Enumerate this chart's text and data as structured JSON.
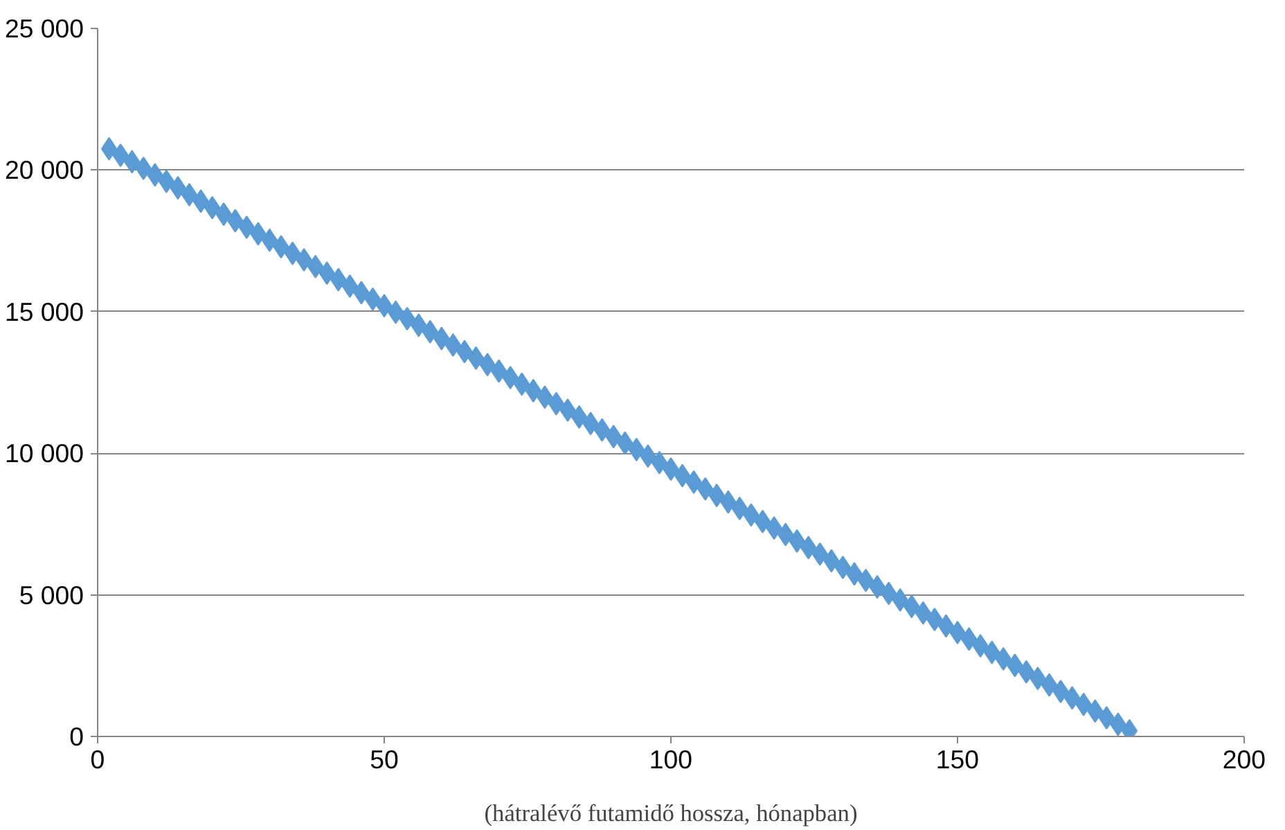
{
  "chart_data": {
    "type": "scatter",
    "xlabel": "(hátralévő futamidő hossza, hónapban)",
    "marker": "diamond",
    "grid": "y",
    "xlim": [
      0,
      200
    ],
    "xticks": [
      0,
      50,
      100,
      150,
      200
    ],
    "ylim": [
      0,
      25000
    ],
    "yticks": [
      0,
      {
        "value": 5000,
        "label": "5 000"
      },
      {
        "value": 10000,
        "label": "10 000"
      },
      {
        "value": 15000,
        "label": "15 000"
      },
      {
        "value": 20000,
        "label": "20 000"
      },
      {
        "value": 25000,
        "label": "25 000"
      }
    ],
    "x": [
      2,
      4,
      6,
      8,
      10,
      12,
      14,
      16,
      18,
      20,
      22,
      24,
      26,
      28,
      30,
      32,
      34,
      36,
      38,
      40,
      42,
      44,
      46,
      48,
      50,
      52,
      54,
      56,
      58,
      60,
      62,
      64,
      66,
      68,
      70,
      72,
      74,
      76,
      78,
      80,
      82,
      84,
      86,
      88,
      90,
      92,
      94,
      96,
      98,
      100,
      102,
      104,
      106,
      108,
      110,
      112,
      114,
      116,
      118,
      120,
      122,
      124,
      126,
      128,
      130,
      132,
      134,
      136,
      138,
      140,
      142,
      144,
      146,
      148,
      150,
      152,
      154,
      156,
      158,
      160,
      162,
      164,
      166,
      168,
      170,
      172,
      174,
      176,
      178,
      180
    ],
    "series": [
      {
        "color": "#5b9bd5",
        "values": [
          20750,
          20520,
          20290,
          20060,
          19830,
          19600,
          19370,
          19130,
          18900,
          18670,
          18440,
          18210,
          17980,
          17750,
          17520,
          17290,
          17060,
          16830,
          16590,
          16360,
          16130,
          15900,
          15670,
          15440,
          15210,
          14980,
          14750,
          14520,
          14290,
          14050,
          13820,
          13590,
          13360,
          13130,
          12900,
          12670,
          12440,
          12210,
          11980,
          11750,
          11520,
          11280,
          11050,
          10820,
          10590,
          10360,
          10130,
          9900,
          9670,
          9440,
          9210,
          8980,
          8740,
          8510,
          8280,
          8050,
          7820,
          7590,
          7360,
          7130,
          6900,
          6670,
          6440,
          6200,
          5970,
          5740,
          5510,
          5280,
          5050,
          4820,
          4590,
          4360,
          4130,
          3900,
          3670,
          3440,
          3200,
          2970,
          2740,
          2510,
          2280,
          2050,
          1820,
          1590,
          1360,
          1130,
          900,
          660,
          430,
          200
        ]
      }
    ]
  }
}
